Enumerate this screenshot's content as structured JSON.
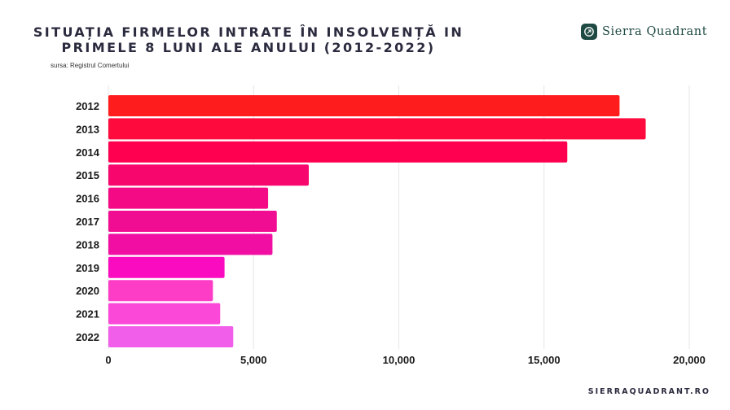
{
  "header": {
    "title_line1": "SITUAȚIA FIRMELOR INTRATE ÎN INSOLVENȚĂ IN",
    "title_line2": "PRIMELE 8 LUNI ALE ANULUI (2012-2022)",
    "source": "sursa: Registrul Comertului"
  },
  "brand": {
    "logo_text": "Sierra Quadrant",
    "logo_color": "#1f4a44",
    "footer_url": "SIERRAQUADRANT.RO"
  },
  "chart_data": {
    "type": "bar",
    "orientation": "horizontal",
    "title": "SITUAȚIA FIRMELOR INTRATE ÎN INSOLVENȚĂ IN PRIMELE 8 LUNI ALE ANULUI (2012-2022)",
    "xlabel": "",
    "ylabel": "",
    "categories": [
      "2012",
      "2013",
      "2014",
      "2015",
      "2016",
      "2017",
      "2018",
      "2019",
      "2020",
      "2021",
      "2022"
    ],
    "values": [
      17600,
      18500,
      15800,
      6900,
      5500,
      5800,
      5650,
      4000,
      3600,
      3850,
      4300
    ],
    "colors": [
      "#ff1c1c",
      "#ff0a3c",
      "#ff0050",
      "#f7066e",
      "#f30a84",
      "#f00d92",
      "#f00fa2",
      "#fb0bbf",
      "#fe3dc7",
      "#fc48d9",
      "#f15ee9"
    ],
    "xlim": [
      0,
      20000
    ],
    "xticks": [
      0,
      5000,
      10000,
      15000,
      20000
    ],
    "xtick_labels": [
      "0",
      "5,000",
      "10,000",
      "15,000",
      "20,000"
    ],
    "grid": "vertical",
    "legend": "none"
  }
}
